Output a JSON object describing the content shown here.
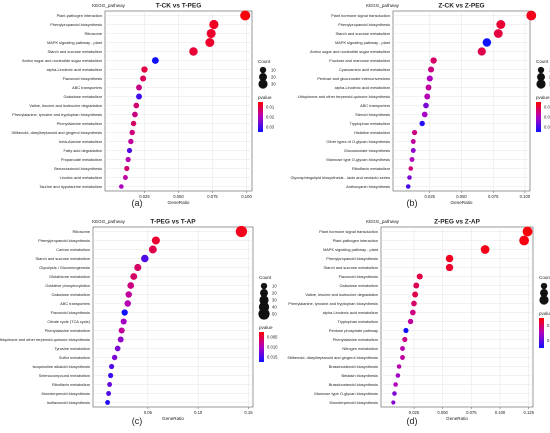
{
  "chart_data": [
    {
      "type": "scatter",
      "panel_label": "(a)",
      "title": "T-CK vs T-PEG",
      "kegg_label": "KEGG_pathway",
      "xlabel": "GeneRatio",
      "xlim": [
        0,
        0.1
      ],
      "xticks": [
        "0.025",
        "0.050",
        "0.075",
        "0.100"
      ],
      "xtick_values": [
        0.025,
        0.05,
        0.075,
        0.1
      ],
      "count_legend_title": "Count",
      "count_legend_labels": [
        "10",
        "20",
        "30"
      ],
      "pvalue_legend_title": "pvalue",
      "pvalue_legend_labels": [
        "0.01",
        "0.02",
        "0.03"
      ],
      "categories": [
        "Plant-pathogen interaction",
        "Phenylpropanoid biosynthesis",
        "Ribosome",
        "MAPK signaling pathway - plant",
        "Starch and sucrose metabolism",
        "Amino sugar and nucleotide sugar metabolism",
        "alpha-Linolenic acid metabolism",
        "Flavonoid biosynthesis",
        "ABC transporters",
        "Galactose metabolism",
        "Valine, leucine and isoleucine degradation",
        "Phenylalanine, tyrosine and tryptophan biosynthesis",
        "Phenylalanine metabolism",
        "Stilbenoid, diarylheptanoid and gingerol biosynthesis",
        "beta-Alanine metabolism",
        "Fatty acid degradation",
        "Propanoate metabolism",
        "Benzoxazinoid biosynthesis",
        "Linoleic acid metabolism",
        "Taurine and hypotaurine metabolism"
      ],
      "x": [
        0.099,
        0.076,
        0.074,
        0.073,
        0.061,
        0.033,
        0.025,
        0.024,
        0.021,
        0.021,
        0.019,
        0.018,
        0.017,
        0.016,
        0.015,
        0.014,
        0.013,
        0.012,
        0.011,
        0.008
      ],
      "count": [
        38,
        30,
        29,
        28,
        24,
        13,
        10,
        9,
        8,
        8,
        7,
        7,
        6,
        6,
        6,
        5,
        5,
        5,
        4,
        3
      ],
      "pvalue": [
        0.001,
        0.003,
        0.004,
        0.004,
        0.005,
        0.035,
        0.006,
        0.008,
        0.012,
        0.03,
        0.01,
        0.012,
        0.009,
        0.011,
        0.014,
        0.028,
        0.016,
        0.01,
        0.015,
        0.018
      ]
    },
    {
      "type": "scatter",
      "panel_label": "(b)",
      "title": "Z-CK vs Z-PEG",
      "kegg_label": "KEGG_pathway",
      "xlabel": "GeneRatio",
      "xlim": [
        0,
        0.1
      ],
      "xticks": [
        "0.025",
        "0.050",
        "0.075",
        "0.100"
      ],
      "xtick_values": [
        0.025,
        0.05,
        0.075,
        0.1
      ],
      "count_legend_title": "Count",
      "count_legend_labels": [
        "10",
        "20",
        "30"
      ],
      "pvalue_legend_title": "pvalue",
      "pvalue_legend_labels": [
        "0.01",
        "0.02",
        "0.03"
      ],
      "categories": [
        "Plant hormone signal transduction",
        "Phenylpropanoid biosynthesis",
        "Starch and sucrose metabolism",
        "MAPK signaling pathway - plant",
        "Amino sugar and nucleotide sugar metabolism",
        "Fructose and mannose metabolism",
        "Cyanoamino acid metabolism",
        "Pentose and glucuronate interconversions",
        "alpha-Linolenic acid metabolism",
        "Ubiquinone and other terpenoid-quinone biosynthesis",
        "ABC transporters",
        "Steroid biosynthesis",
        "Tryptophan metabolism",
        "Histidine metabolism",
        "Other types of O-glycan biosynthesis",
        "Glucosinolate biosynthesis",
        "Mannose type O-glycan biosynthesis",
        "Riboflavin metabolism",
        "Glycosphingolipid biosynthesis - lacto and neolacto series",
        "Anthocyanin biosynthesis"
      ],
      "x": [
        0.105,
        0.081,
        0.079,
        0.07,
        0.066,
        0.028,
        0.026,
        0.025,
        0.024,
        0.023,
        0.022,
        0.021,
        0.019,
        0.013,
        0.012,
        0.012,
        0.011,
        0.01,
        0.009,
        0.008
      ],
      "count": [
        36,
        28,
        27,
        24,
        22,
        10,
        9,
        9,
        8,
        8,
        7,
        7,
        6,
        5,
        4,
        4,
        4,
        3,
        3,
        3
      ],
      "pvalue": [
        0.002,
        0.004,
        0.005,
        0.03,
        0.006,
        0.008,
        0.01,
        0.015,
        0.012,
        0.014,
        0.02,
        0.016,
        0.028,
        0.01,
        0.012,
        0.018,
        0.015,
        0.01,
        0.02,
        0.025
      ]
    },
    {
      "type": "scatter",
      "panel_label": "(c)",
      "title": "T-PEG vs T-AP",
      "kegg_label": "KEGG_pathway",
      "xlabel": "GeneRatio",
      "xlim": [
        0,
        0.15
      ],
      "xticks": [
        "0.05",
        "0.10",
        "0.15"
      ],
      "xtick_values": [
        0.05,
        0.1,
        0.15
      ],
      "count_legend_title": "Count",
      "count_legend_labels": [
        "10",
        "20",
        "30",
        "40",
        "50"
      ],
      "pvalue_legend_title": "pvalue",
      "pvalue_legend_labels": [
        "0.005",
        "0.010",
        "0.015"
      ],
      "categories": [
        "Ribosome",
        "Phenylpropanoid biosynthesis",
        "Carbon metabolism",
        "Starch and sucrose metabolism",
        "Glycolysis / Gluconeogenesis",
        "Glutathione metabolism",
        "Oxidative phosphorylation",
        "Galactose metabolism",
        "ABC transporters",
        "Flavonoid biosynthesis",
        "Citrate cycle (TCA cycle)",
        "Phenylalanine metabolism",
        "Ubiquinone and other terpenoid-quinone biosynthesis",
        "Tyrosine metabolism",
        "Sulfur metabolism",
        "Isoquinoline alkaloid biosynthesis",
        "Selenocompound metabolism",
        "Riboflavin metabolism",
        "Monoterpenoid biosynthesis",
        "Isoflavonoid biosynthesis"
      ],
      "x": [
        0.143,
        0.058,
        0.055,
        0.047,
        0.04,
        0.036,
        0.033,
        0.031,
        0.03,
        0.027,
        0.026,
        0.024,
        0.023,
        0.02,
        0.017,
        0.014,
        0.013,
        0.012,
        0.011,
        0.01
      ],
      "count": [
        52,
        21,
        20,
        17,
        15,
        13,
        12,
        11,
        11,
        10,
        9,
        9,
        8,
        7,
        6,
        5,
        5,
        4,
        4,
        4
      ],
      "pvalue": [
        0.001,
        0.002,
        0.003,
        0.012,
        0.004,
        0.004,
        0.005,
        0.006,
        0.007,
        0.015,
        0.008,
        0.006,
        0.009,
        0.01,
        0.01,
        0.012,
        0.013,
        0.011,
        0.012,
        0.014
      ]
    },
    {
      "type": "scatter",
      "panel_label": "(d)",
      "title": "Z-PEG vs Z-AP",
      "kegg_label": "KEGG_pathway",
      "xlabel": "GeneRatio",
      "xlim": [
        0,
        0.125
      ],
      "xticks": [
        "0.025",
        "0.050",
        "0.075",
        "0.100",
        "0.125"
      ],
      "xtick_values": [
        0.025,
        0.05,
        0.075,
        0.1,
        0.125
      ],
      "count_legend_title": "Count",
      "count_legend_labels": [
        "10",
        "20",
        "30"
      ],
      "pvalue_legend_title": "pvalue",
      "pvalue_legend_labels": [
        "0.02",
        "0.04"
      ],
      "categories": [
        "Plant hormone signal transduction",
        "Plant-pathogen interaction",
        "MAPK signaling pathway - plant",
        "Phenylpropanoid biosynthesis",
        "Starch and sucrose metabolism",
        "Flavonoid biosynthesis",
        "Galactose metabolism",
        "Valine, leucine and isoleucine degradation",
        "Phenylalanine, tyrosine and tryptophan biosynthesis",
        "alpha-Linolenic acid metabolism",
        "Tryptophan metabolism",
        "Pentose phosphate pathway",
        "Phenylalanine metabolism",
        "Nitrogen metabolism",
        "Stilbenoid, diarylheptanoid and gingerol biosynthesis",
        "Brassinosteroid biosynthesis",
        "Betalain biosynthesis",
        "Brassinosteroid biosynthesis",
        "Mannose type O-glycan biosynthesis",
        "Monoterpenoid biosynthesis"
      ],
      "x": [
        0.124,
        0.121,
        0.087,
        0.056,
        0.056,
        0.03,
        0.027,
        0.026,
        0.025,
        0.024,
        0.022,
        0.018,
        0.017,
        0.015,
        0.015,
        0.012,
        0.011,
        0.009,
        0.008,
        0.007
      ],
      "count": [
        36,
        35,
        26,
        17,
        16,
        9,
        8,
        8,
        7,
        7,
        6,
        5,
        5,
        4,
        4,
        3,
        3,
        3,
        3,
        2
      ],
      "pvalue": [
        0.001,
        0.002,
        0.003,
        0.004,
        0.005,
        0.008,
        0.01,
        0.009,
        0.012,
        0.015,
        0.018,
        0.045,
        0.016,
        0.02,
        0.018,
        0.02,
        0.025,
        0.022,
        0.03,
        0.028
      ]
    }
  ],
  "colors": {
    "low_pvalue": "#ff0000",
    "mid_pvalue": "#b000c0",
    "high_pvalue": "#1010ff",
    "frame": "#555555",
    "grid": "#e4e4e4",
    "text": "#222222"
  }
}
